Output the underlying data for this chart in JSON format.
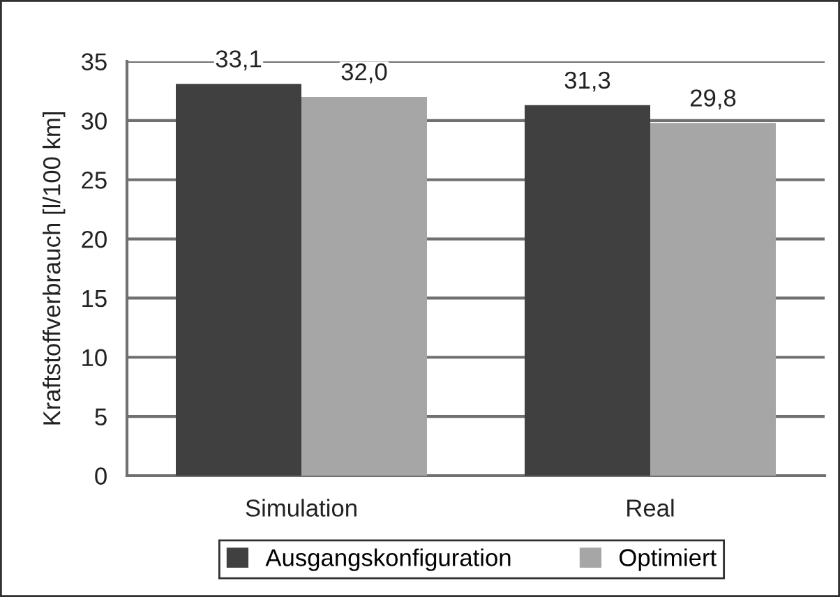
{
  "chart_data": {
    "type": "bar",
    "ylabel": "Kraftstoffverbrauch [l/100 km]",
    "categories": [
      "Simulation",
      "Real"
    ],
    "series": [
      {
        "name": "Ausgangskonfiguration",
        "color": "#404040",
        "values": [
          33.1,
          31.3
        ],
        "value_labels": [
          "33,1",
          "31,3"
        ]
      },
      {
        "name": "Optimiert",
        "color": "#a6a6a6",
        "values": [
          32.0,
          29.8
        ],
        "value_labels": [
          "32,0",
          "29,8"
        ]
      }
    ],
    "ylim": [
      0,
      35
    ],
    "yticks": [
      0,
      5,
      10,
      15,
      20,
      25,
      30,
      35
    ],
    "grid": "y",
    "legend": "bottom"
  }
}
